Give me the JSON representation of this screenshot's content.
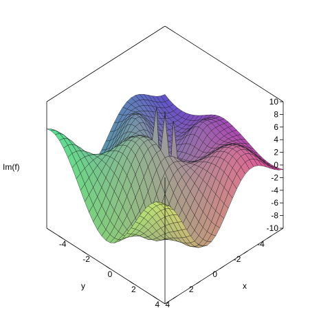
{
  "chart_data": {
    "type": "surface3d",
    "zlabel": "Im(f)",
    "xlabel": "x",
    "ylabel": "y",
    "xlim": [
      -5,
      5
    ],
    "ylim": [
      -5,
      5
    ],
    "zlim": [
      -10,
      10
    ],
    "z_ticks": [
      "10",
      "8",
      "6",
      "4",
      "2",
      "0",
      "-2",
      "-4",
      "-6",
      "-8",
      "-10"
    ],
    "y_ticks": [
      "-4",
      "-2",
      "0",
      "2",
      "4"
    ],
    "x_ticks": [
      "-4",
      "-2",
      "0",
      "2",
      "4"
    ],
    "grid": false,
    "colors": {
      "magenta": "#e040b0",
      "purple": "#6050e0",
      "olive": "#a8a838",
      "teal": "#3aa090",
      "green": "#58e890",
      "yellow": "#d8f070"
    }
  }
}
